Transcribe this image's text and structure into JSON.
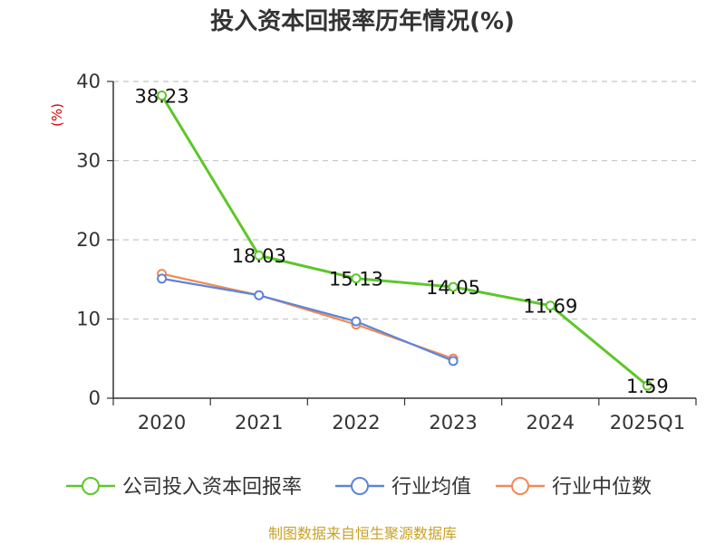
{
  "chart_data": {
    "type": "line",
    "title": "投入资本回报率历年情况(%)",
    "ylabel": "(%)",
    "xlabel": "",
    "categories": [
      "2020",
      "2021",
      "2022",
      "2023",
      "2024",
      "2025Q1"
    ],
    "ylim": [
      0,
      40
    ],
    "yticks": [
      0,
      10,
      20,
      30,
      40
    ],
    "grid": true,
    "legend_position": "bottom",
    "series": [
      {
        "name": "公司投入资本回报率",
        "color": "#5cc72a",
        "values": [
          38.23,
          18.03,
          15.13,
          14.05,
          11.69,
          1.59
        ],
        "labels": [
          "38.23",
          "18.03",
          "15.13",
          "14.05",
          "11.69",
          "1.59"
        ],
        "show_labels": true
      },
      {
        "name": "行业均值",
        "color": "#5b85d9",
        "values": [
          15.1,
          13.0,
          9.7,
          4.7,
          null,
          null
        ],
        "show_labels": false
      },
      {
        "name": "行业中位数",
        "color": "#f08a55",
        "values": [
          15.7,
          13.0,
          9.3,
          5.0,
          null,
          null
        ],
        "show_labels": false
      }
    ],
    "source": "制图数据来自恒生聚源数据库"
  }
}
